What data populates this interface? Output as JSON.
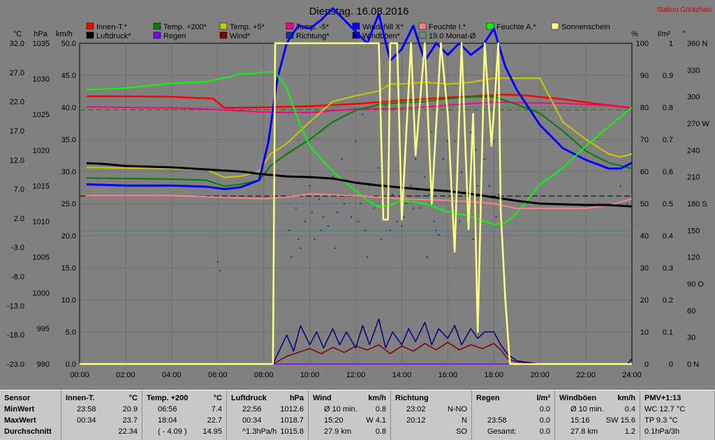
{
  "chart_data": {
    "type": "line",
    "title": "Dienstag. 16.08.2016",
    "station": "Station Göritzhain",
    "x_ticks": [
      "00:00",
      "02:00",
      "04:00",
      "06:00",
      "08:00",
      "10:00",
      "12:00",
      "14:00",
      "16:00",
      "18:00",
      "20:00",
      "22:00",
      "24:00"
    ],
    "xlim": [
      0,
      24
    ],
    "axes": {
      "temp": {
        "unit": "°C",
        "ticks": [
          "32.0",
          "27.0",
          "22.0",
          "17.0",
          "12.0",
          "7.0",
          "2.0",
          "-3.0",
          "-8.0",
          "-13.0",
          "-18.0",
          "-23.0"
        ],
        "range": [
          -23,
          32
        ]
      },
      "pressure": {
        "unit": "hPa",
        "ticks": [
          "1035",
          "1030",
          "1025",
          "1020",
          "1015",
          "1010",
          "1005",
          "1000",
          "995",
          "990"
        ],
        "range": [
          990,
          1036
        ]
      },
      "wind": {
        "unit": "km/h",
        "ticks": [
          "50.0",
          "45.0",
          "40.0",
          "35.0",
          "30.0",
          "25.0",
          "20.0",
          "15.0",
          "10.0",
          "5.0",
          "0.0"
        ],
        "range": [
          0,
          50
        ]
      },
      "humidity": {
        "unit": "%",
        "ticks": [
          "100",
          "90",
          "80",
          "70",
          "60",
          "50",
          "40",
          "30",
          "20",
          "10",
          "0"
        ],
        "range": [
          0,
          100
        ]
      },
      "rain": {
        "unit": "l/m²",
        "ticks": [
          "1",
          "0.9",
          "0.8",
          "0.7",
          "0.6",
          "0.5",
          "0.4",
          "0.3",
          "0.2",
          "0.1",
          "0"
        ],
        "range": [
          0,
          1
        ]
      },
      "direction": {
        "unit": "°",
        "ticks": [
          "360 N",
          "330",
          "300",
          "270 W",
          "240",
          "210",
          "180 S",
          "150",
          "120",
          "90 O",
          "60",
          "30",
          "0   N"
        ],
        "range": [
          0,
          360
        ]
      }
    },
    "legend": [
      {
        "name": "Innen-T.*",
        "color": "#ff0000"
      },
      {
        "name": "Temp. +200*",
        "color": "#008000"
      },
      {
        "name": "Temp. +5*",
        "color": "#c8c800"
      },
      {
        "name": "Temp. -5*",
        "color": "#ff0080"
      },
      {
        "name": "Windchill X*",
        "color": "#0000ff"
      },
      {
        "name": "Feuchte I.*",
        "color": "#ff8080"
      },
      {
        "name": "Feuchte A.*",
        "color": "#00ff00"
      },
      {
        "name": "Sonnenschein",
        "color": "#ffff80"
      },
      {
        "name": "Luftdruck*",
        "color": "#000000"
      },
      {
        "name": "Regen",
        "color": "#8000ff"
      },
      {
        "name": "Wind*",
        "color": "#800000"
      },
      {
        "name": "Richtung*",
        "color": "#004080"
      },
      {
        "name": "Windböen*",
        "color": "#000080"
      },
      {
        "name": "19.0 Monat-Ø",
        "color": "#008000",
        "outline": true
      }
    ],
    "reference_lines": [
      {
        "axis": "temp",
        "value": 20.6,
        "color": "#008000",
        "style": "dashed"
      },
      {
        "axis": "temp",
        "value": 5.8,
        "color": "#000000",
        "style": "dashed"
      },
      {
        "axis": "temp",
        "value": -0.2,
        "color": "#00a0a0",
        "style": "solid"
      }
    ],
    "series": [
      {
        "name": "Innen-T.*",
        "axis": "temp",
        "color": "#ff0000",
        "width": 2.5,
        "x": [
          0.3,
          2,
          4,
          5.8,
          6.3,
          8,
          10,
          12,
          14,
          16,
          17.5,
          18.5,
          19.5,
          21,
          22.5,
          24
        ],
        "y": [
          22.9,
          22.9,
          22.8,
          22.5,
          20.9,
          21.0,
          21.2,
          21.6,
          22.2,
          22.7,
          23.0,
          23.2,
          23.0,
          22.4,
          21.6,
          20.9
        ]
      },
      {
        "name": "Temp. -5*",
        "axis": "temp",
        "color": "#ff0080",
        "width": 2,
        "x": [
          0.3,
          2,
          4,
          6,
          8,
          10,
          12,
          14,
          16,
          18,
          19,
          21,
          23,
          24
        ],
        "y": [
          21.1,
          21.0,
          20.9,
          20.6,
          20.2,
          20.1,
          20.7,
          20.8,
          21.4,
          21.9,
          21.8,
          21.7,
          21.3,
          21.0
        ]
      },
      {
        "name": "Temp. +5*",
        "axis": "temp",
        "color": "#c8c800",
        "width": 2,
        "x": [
          0.3,
          2,
          4,
          5.5,
          6.3,
          7,
          7.8,
          8.3,
          9,
          10,
          11,
          12,
          13,
          13.5,
          14,
          15,
          16,
          17,
          18,
          19,
          20,
          21,
          22,
          23,
          23.5,
          24
        ],
        "y": [
          10.7,
          10.6,
          10.5,
          10.3,
          9.0,
          9.2,
          10.0,
          13.0,
          14.8,
          18.5,
          22.0,
          23.0,
          23.8,
          25.0,
          25.0,
          25.3,
          25.0,
          25.3,
          26.0,
          26.0,
          26.0,
          18.5,
          15.5,
          13.0,
          12.5,
          13.0
        ]
      },
      {
        "name": "Temp. +200*",
        "axis": "temp",
        "color": "#008000",
        "width": 2,
        "x": [
          0.3,
          2,
          4,
          5.5,
          6.3,
          7,
          7.8,
          8.3,
          9,
          10,
          11,
          12,
          13,
          14,
          15,
          16,
          17,
          18,
          19,
          20,
          21,
          22,
          23,
          24
        ],
        "y": [
          8.9,
          8.8,
          8.7,
          8.5,
          7.5,
          7.8,
          8.5,
          11.0,
          13.0,
          15.5,
          18.5,
          20.5,
          21.5,
          21.8,
          22.0,
          22.5,
          22.8,
          22.8,
          21.5,
          20.0,
          17.0,
          13.5,
          11.5,
          10.5
        ]
      },
      {
        "name": "Windchill X*",
        "axis": "temp",
        "color": "#0000ff",
        "width": 3,
        "x": [
          0.3,
          2,
          4,
          5.5,
          6.3,
          7,
          7.8,
          8.2,
          8.6,
          9,
          9.5,
          10,
          10.5,
          11,
          11.5,
          12,
          12.5,
          13,
          13.5,
          14,
          14.5,
          15,
          15.5,
          16,
          16.5,
          17,
          17.5,
          18,
          18.5,
          19,
          19.5,
          20,
          20.5,
          21,
          22,
          23,
          23.5,
          24
        ],
        "y": [
          7.8,
          7.6,
          7.6,
          7.4,
          7.0,
          7.3,
          8.5,
          15.0,
          26.0,
          32.0,
          35.0,
          34.5,
          36.0,
          38.0,
          36.0,
          34.0,
          32.0,
          37.0,
          29.0,
          31.0,
          35.0,
          29.0,
          32.0,
          30.0,
          32.0,
          30.0,
          31.5,
          34.5,
          28.0,
          24.0,
          21.0,
          18.0,
          16.0,
          14.0,
          12.0,
          10.5,
          10.5,
          11.5
        ]
      },
      {
        "name": "Feuchte A.*",
        "axis": "humidity",
        "color": "#00ff00",
        "width": 2,
        "x": [
          0.3,
          2,
          4,
          5.5,
          6.5,
          7,
          7.5,
          8,
          8.5,
          9,
          9.5,
          10,
          11,
          12,
          12.5,
          13,
          13.5,
          14,
          15,
          16,
          17,
          18,
          18.5,
          19,
          20,
          21,
          22,
          23,
          23.5,
          24
        ],
        "y": [
          85.5,
          86.0,
          87.5,
          88.0,
          89.5,
          90.5,
          90.5,
          91.0,
          91.0,
          86.0,
          76.0,
          68.0,
          60.0,
          54.0,
          51.0,
          49.0,
          49.5,
          51.0,
          50.0,
          47.5,
          46.0,
          43.5,
          44.0,
          47.0,
          56.0,
          61.0,
          68.0,
          74.0,
          77.0,
          80.0
        ]
      },
      {
        "name": "Feuchte I.*",
        "axis": "humidity",
        "color": "#ff8080",
        "width": 2,
        "x": [
          0.3,
          2,
          4,
          6,
          8,
          9,
          10,
          12,
          14,
          16,
          18,
          19,
          20,
          22,
          23,
          24
        ],
        "y": [
          52.5,
          52.5,
          52.5,
          52.0,
          51.5,
          52.0,
          53.0,
          52.5,
          51.5,
          51.0,
          50.0,
          48.5,
          48.5,
          48.5,
          49.5,
          51.5
        ]
      },
      {
        "name": "Luftdruck*",
        "axis": "pressure",
        "color": "#000000",
        "width": 3,
        "x": [
          0.3,
          1,
          2,
          4,
          5,
          6,
          7,
          8,
          9,
          10,
          11,
          12,
          13,
          14,
          15,
          16,
          17,
          18,
          19,
          20,
          21,
          22,
          23,
          24
        ],
        "y": [
          1018.8,
          1018.7,
          1018.4,
          1018.2,
          1018.0,
          1017.8,
          1017.6,
          1017.2,
          1016.9,
          1016.8,
          1016.6,
          1016.0,
          1015.6,
          1015.3,
          1015.0,
          1014.8,
          1014.4,
          1013.9,
          1013.4,
          1013.0,
          1012.9,
          1012.8,
          1012.8,
          1012.6
        ]
      },
      {
        "name": "Sonnenschein",
        "axis": "humidity",
        "color": "#ffff80",
        "width": 2.5,
        "x": [
          0,
          8.4,
          8.5,
          13.0,
          13.2,
          13.4,
          13.5,
          13.8,
          14.0,
          14.4,
          14.6,
          15.0,
          15.3,
          15.7,
          16.0,
          16.3,
          16.6,
          16.9,
          17.1,
          17.3,
          17.6,
          17.9,
          18.2,
          18.3,
          18.5,
          18.7,
          19.0,
          24
        ],
        "y": [
          0,
          0,
          100,
          100,
          45,
          45,
          100,
          100,
          45,
          100,
          65,
          100,
          50,
          100,
          78,
          35,
          100,
          42,
          78,
          10,
          100,
          68,
          100,
          48,
          20,
          0,
          0,
          0
        ]
      },
      {
        "name": "Wind*",
        "axis": "wind",
        "color": "#800000",
        "width": 1.5,
        "x": [
          8.4,
          9,
          9.5,
          10,
          10.5,
          11,
          11.5,
          12,
          12.5,
          13,
          13.5,
          14,
          14.5,
          15,
          15.5,
          16,
          16.5,
          17,
          17.5,
          18,
          18.3,
          18.6,
          19,
          20,
          24
        ],
        "y": [
          0,
          1.2,
          1.8,
          2.4,
          1.6,
          2.6,
          1.8,
          2.8,
          2.2,
          3.0,
          1.6,
          2.8,
          2.0,
          3.2,
          2.2,
          3.4,
          2.2,
          3.0,
          2.4,
          3.2,
          2.2,
          0.8,
          0.3,
          0,
          0
        ]
      },
      {
        "name": "Windböen*",
        "axis": "wind",
        "color": "#000080",
        "width": 1.5,
        "x": [
          8.4,
          9,
          9.3,
          9.6,
          10,
          10.3,
          10.6,
          11,
          11.3,
          11.6,
          12,
          12.3,
          12.6,
          13,
          13.3,
          13.6,
          14,
          14.3,
          14.6,
          15,
          15.3,
          15.6,
          16,
          16.3,
          16.6,
          17,
          17.3,
          17.6,
          18,
          18.3,
          18.6,
          19,
          20,
          23.8,
          24
        ],
        "y": [
          0,
          4.5,
          2.0,
          6.0,
          3.0,
          5.0,
          2.5,
          5.5,
          3.0,
          5.0,
          2.5,
          6.0,
          3.0,
          7.0,
          2.5,
          5.0,
          3.0,
          5.5,
          3.5,
          6.5,
          3.0,
          5.5,
          4.0,
          6.0,
          3.0,
          5.5,
          4.0,
          5.0,
          5.0,
          3.0,
          1.5,
          0.5,
          0,
          0,
          0.8
        ]
      },
      {
        "name": "Regen",
        "axis": "rain",
        "color": "#8000ff",
        "width": 1.5,
        "x": [
          8.4,
          24
        ],
        "y": [
          0,
          0
        ]
      }
    ],
    "direction_points": {
      "axis": "direction",
      "color": "#004080",
      "x": [
        6.0,
        6.1,
        9.1,
        9.4,
        9.6,
        9.8,
        10.0,
        10.2,
        10.4,
        10.6,
        10.8,
        11.0,
        11.2,
        11.4,
        11.6,
        11.8,
        12.0,
        12.2,
        12.4,
        12.6,
        12.8,
        13.0,
        13.2,
        13.4,
        13.6,
        13.8,
        14.0,
        14.2,
        14.4,
        14.6,
        14.8,
        15.0,
        15.2,
        15.4,
        15.6,
        15.8,
        16.0,
        16.2,
        16.4,
        16.6,
        16.8,
        17.0,
        17.2,
        17.4,
        17.6,
        17.8,
        18.0,
        18.2,
        9.2,
        9.5,
        10.1,
        10.5,
        11.1,
        11.5,
        12.1,
        12.5,
        13.1,
        13.5,
        14.1,
        14.5,
        15.1,
        15.5,
        16.1,
        16.5,
        17.1,
        17.5,
        18.1,
        12.3,
        13.3,
        15.3,
        16.3,
        17.3,
        23.5,
        23.8
      ],
      "y": [
        115,
        105,
        150,
        175,
        130,
        160,
        200,
        140,
        185,
        165,
        155,
        210,
        170,
        230,
        190,
        165,
        250,
        180,
        150,
        200,
        175,
        220,
        170,
        240,
        190,
        160,
        155,
        180,
        200,
        230,
        175,
        210,
        190,
        160,
        145,
        230,
        250,
        200,
        180,
        215,
        195,
        260,
        240,
        170,
        230,
        200,
        250,
        190,
        120,
        140,
        170,
        150,
        130,
        180,
        160,
        120,
        140,
        150,
        165,
        175,
        120,
        150,
        170,
        160,
        140,
        180,
        165,
        280,
        290,
        260,
        250,
        200,
        200,
        180
      ]
    }
  },
  "stats": {
    "columns": [
      {
        "header": "Sensor",
        "unit": "",
        "rows": [
          [
            "MinWert",
            "",
            ""
          ],
          [
            "MaxWert",
            "",
            ""
          ],
          [
            "Durchschnitt",
            "",
            ""
          ]
        ]
      },
      {
        "header": "Innen-T.",
        "unit": "°C",
        "rows": [
          [
            "23:58",
            "",
            "20.9"
          ],
          [
            "00:34",
            "",
            "23.7"
          ],
          [
            "",
            "",
            "22.34"
          ]
        ]
      },
      {
        "header": "Temp. +200",
        "unit": "°C",
        "rows": [
          [
            "06:56",
            "",
            "7.4"
          ],
          [
            "18:04",
            "",
            "22.7"
          ],
          [
            "( - 4.09 )",
            "",
            "14.95"
          ]
        ]
      },
      {
        "header": "Luftdruck",
        "unit": "hPa",
        "rows": [
          [
            "22:56",
            "",
            "1012.6"
          ],
          [
            "00:34",
            "",
            "1018.7"
          ],
          [
            "^1.3hPa/h",
            "",
            "1015.8"
          ]
        ]
      },
      {
        "header": "Wind",
        "unit": "km/h",
        "rows": [
          [
            "Ø 10 min.",
            "",
            "0.8"
          ],
          [
            "15:20",
            "",
            "W 4.1"
          ],
          [
            "27.9 km",
            "",
            "0.8"
          ]
        ]
      },
      {
        "header": "Richtung",
        "unit": "",
        "rows": [
          [
            "23:02",
            "",
            "N-NO"
          ],
          [
            "20:12",
            "",
            "N"
          ],
          [
            "",
            "",
            "SO"
          ]
        ]
      },
      {
        "header": "Regen",
        "unit": "l/m²",
        "rows": [
          [
            "",
            "",
            "0.0"
          ],
          [
            "23:58",
            "",
            "0.0"
          ],
          [
            "Gesamt:",
            "",
            "0.0"
          ]
        ]
      },
      {
        "header": "Windböen",
        "unit": "km/h",
        "rows": [
          [
            "Ø 10 min.",
            "",
            "0.4"
          ],
          [
            "15:16",
            "",
            "SW 15.6"
          ],
          [
            "27.8 km",
            "",
            "1.2"
          ]
        ]
      },
      {
        "header": "PMV+1:13",
        "unit": "",
        "rows": [
          [
            "WC 12.7 °C",
            "",
            ""
          ],
          [
            "TP 9.3 °C",
            "",
            ""
          ],
          [
            "0.1hPa/3h",
            "",
            ""
          ]
        ]
      }
    ]
  }
}
